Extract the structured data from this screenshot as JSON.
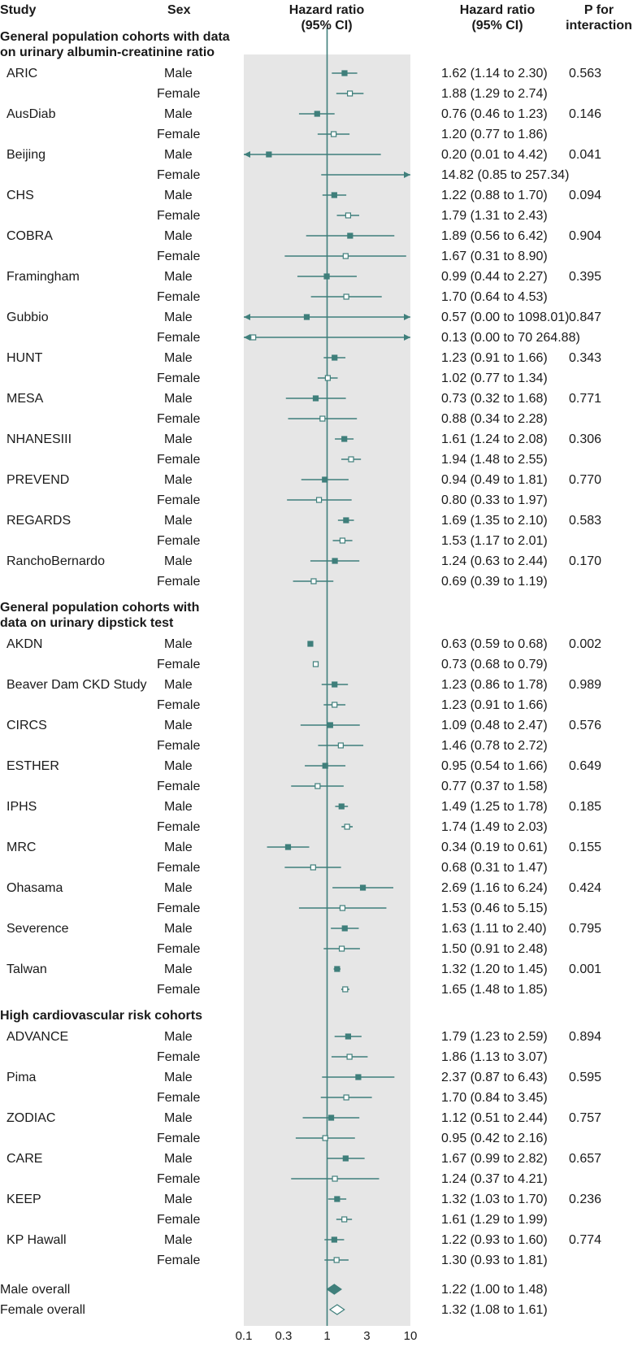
{
  "chart_data": {
    "type": "forest",
    "x_scale": "log",
    "xlim": [
      0.1,
      10
    ],
    "reference_line": 1,
    "headers": {
      "study": "Study",
      "sex": "Sex",
      "plot": [
        "Hazard ratio",
        "(95% CI)"
      ],
      "ci": [
        "Hazard ratio",
        "(95% CI)"
      ],
      "p": [
        "P for",
        "interaction"
      ]
    },
    "x_ticks": [
      {
        "value": 0.1,
        "label": "0.1"
      },
      {
        "value": 0.3,
        "label": "0.3"
      },
      {
        "value": 1,
        "label": "1"
      },
      {
        "value": 3,
        "label": "3"
      },
      {
        "value": 10,
        "label": "10"
      }
    ],
    "sections": [
      {
        "title": [
          "General population cohorts with data",
          "on urinary albumin-creatinine ratio"
        ],
        "studies": [
          {
            "study": "ARIC",
            "p": "0.563",
            "rows": [
              {
                "sex": "Male",
                "hr": 1.62,
                "lo": 1.14,
                "hi": 2.3,
                "ci": "1.62 (1.14 to 2.30)"
              },
              {
                "sex": "Female",
                "hr": 1.88,
                "lo": 1.29,
                "hi": 2.74,
                "ci": "1.88 (1.29 to 2.74)"
              }
            ]
          },
          {
            "study": "AusDiab",
            "p": "0.146",
            "rows": [
              {
                "sex": "Male",
                "hr": 0.76,
                "lo": 0.46,
                "hi": 1.23,
                "ci": "0.76 (0.46 to 1.23)"
              },
              {
                "sex": "Female",
                "hr": 1.2,
                "lo": 0.77,
                "hi": 1.86,
                "ci": "1.20 (0.77 to 1.86)"
              }
            ]
          },
          {
            "study": "Beijing",
            "p": "0.041",
            "rows": [
              {
                "sex": "Male",
                "hr": 0.2,
                "lo": 0.01,
                "hi": 4.42,
                "ci": "0.20 (0.01 to 4.42)"
              },
              {
                "sex": "Female",
                "hr": 14.82,
                "lo": 0.85,
                "hi": 257.34,
                "ci": "14.82 (0.85 to 257.34)"
              }
            ]
          },
          {
            "study": "CHS",
            "p": "0.094",
            "rows": [
              {
                "sex": "Male",
                "hr": 1.22,
                "lo": 0.88,
                "hi": 1.7,
                "ci": "1.22 (0.88 to 1.70)"
              },
              {
                "sex": "Female",
                "hr": 1.79,
                "lo": 1.31,
                "hi": 2.43,
                "ci": "1.79 (1.31 to 2.43)"
              }
            ]
          },
          {
            "study": "COBRA",
            "p": "0.904",
            "rows": [
              {
                "sex": "Male",
                "hr": 1.89,
                "lo": 0.56,
                "hi": 6.42,
                "ci": "1.89 (0.56 to 6.42)"
              },
              {
                "sex": "Female",
                "hr": 1.67,
                "lo": 0.31,
                "hi": 8.9,
                "ci": "1.67 (0.31 to 8.90)"
              }
            ]
          },
          {
            "study": "Framingham",
            "p": "0.395",
            "rows": [
              {
                "sex": "Male",
                "hr": 0.99,
                "lo": 0.44,
                "hi": 2.27,
                "ci": "0.99 (0.44 to 2.27)"
              },
              {
                "sex": "Female",
                "hr": 1.7,
                "lo": 0.64,
                "hi": 4.53,
                "ci": "1.70 (0.64 to 4.53)"
              }
            ]
          },
          {
            "study": "Gubbio",
            "p": "0.847",
            "rows": [
              {
                "sex": "Male",
                "hr": 0.57,
                "lo": 0.0,
                "hi": 1098.01,
                "ci": "0.57 (0.00 to 1098.01)"
              },
              {
                "sex": "Female",
                "hr": 0.13,
                "lo": 0.0,
                "hi": 70264.88,
                "ci": "0.13 (0.00 to 70 264.88)"
              }
            ]
          },
          {
            "study": "HUNT",
            "p": "0.343",
            "rows": [
              {
                "sex": "Male",
                "hr": 1.23,
                "lo": 0.91,
                "hi": 1.66,
                "ci": "1.23 (0.91 to 1.66)"
              },
              {
                "sex": "Female",
                "hr": 1.02,
                "lo": 0.77,
                "hi": 1.34,
                "ci": "1.02 (0.77 to 1.34)"
              }
            ]
          },
          {
            "study": "MESA",
            "p": "0.771",
            "rows": [
              {
                "sex": "Male",
                "hr": 0.73,
                "lo": 0.32,
                "hi": 1.68,
                "ci": "0.73 (0.32 to 1.68)"
              },
              {
                "sex": "Female",
                "hr": 0.88,
                "lo": 0.34,
                "hi": 2.28,
                "ci": "0.88 (0.34 to 2.28)"
              }
            ]
          },
          {
            "study": "NHANESIII",
            "p": "0.306",
            "rows": [
              {
                "sex": "Male",
                "hr": 1.61,
                "lo": 1.24,
                "hi": 2.08,
                "ci": "1.61 (1.24 to 2.08)"
              },
              {
                "sex": "Female",
                "hr": 1.94,
                "lo": 1.48,
                "hi": 2.55,
                "ci": "1.94 (1.48 to 2.55)"
              }
            ]
          },
          {
            "study": "PREVEND",
            "p": "0.770",
            "rows": [
              {
                "sex": "Male",
                "hr": 0.94,
                "lo": 0.49,
                "hi": 1.81,
                "ci": "0.94 (0.49 to 1.81)"
              },
              {
                "sex": "Female",
                "hr": 0.8,
                "lo": 0.33,
                "hi": 1.97,
                "ci": "0.80 (0.33 to 1.97)"
              }
            ]
          },
          {
            "study": "REGARDS",
            "p": "0.583",
            "rows": [
              {
                "sex": "Male",
                "hr": 1.69,
                "lo": 1.35,
                "hi": 2.1,
                "ci": "1.69 (1.35 to 2.10)"
              },
              {
                "sex": "Female",
                "hr": 1.53,
                "lo": 1.17,
                "hi": 2.01,
                "ci": "1.53 (1.17 to 2.01)"
              }
            ]
          },
          {
            "study": "RanchoBernardo",
            "p": "0.170",
            "rows": [
              {
                "sex": "Male",
                "hr": 1.24,
                "lo": 0.63,
                "hi": 2.44,
                "ci": "1.24 (0.63 to 2.44)"
              },
              {
                "sex": "Female",
                "hr": 0.69,
                "lo": 0.39,
                "hi": 1.19,
                "ci": "0.69 (0.39 to 1.19)"
              }
            ]
          }
        ]
      },
      {
        "title": [
          "General population cohorts with",
          "data on urinary dipstick test"
        ],
        "studies": [
          {
            "study": "AKDN",
            "p": "0.002",
            "rows": [
              {
                "sex": "Male",
                "hr": 0.63,
                "lo": 0.59,
                "hi": 0.68,
                "ci": "0.63 (0.59 to 0.68)"
              },
              {
                "sex": "Female",
                "hr": 0.73,
                "lo": 0.68,
                "hi": 0.79,
                "ci": "0.73 (0.68 to 0.79)"
              }
            ]
          },
          {
            "study": "Beaver Dam CKD Study",
            "p": "0.989",
            "rows": [
              {
                "sex": "Male",
                "hr": 1.23,
                "lo": 0.86,
                "hi": 1.78,
                "ci": "1.23 (0.86 to 1.78)"
              },
              {
                "sex": "Female",
                "hr": 1.23,
                "lo": 0.91,
                "hi": 1.66,
                "ci": "1.23 (0.91 to 1.66)"
              }
            ]
          },
          {
            "study": "CIRCS",
            "p": "0.576",
            "rows": [
              {
                "sex": "Male",
                "hr": 1.09,
                "lo": 0.48,
                "hi": 2.47,
                "ci": "1.09 (0.48 to 2.47)"
              },
              {
                "sex": "Female",
                "hr": 1.46,
                "lo": 0.78,
                "hi": 2.72,
                "ci": "1.46 (0.78 to 2.72)"
              }
            ]
          },
          {
            "study": "ESTHER",
            "p": "0.649",
            "rows": [
              {
                "sex": "Male",
                "hr": 0.95,
                "lo": 0.54,
                "hi": 1.66,
                "ci": "0.95 (0.54 to 1.66)"
              },
              {
                "sex": "Female",
                "hr": 0.77,
                "lo": 0.37,
                "hi": 1.58,
                "ci": "0.77 (0.37 to 1.58)"
              }
            ]
          },
          {
            "study": "IPHS",
            "p": "0.185",
            "rows": [
              {
                "sex": "Male",
                "hr": 1.49,
                "lo": 1.25,
                "hi": 1.78,
                "ci": "1.49 (1.25 to 1.78)"
              },
              {
                "sex": "Female",
                "hr": 1.74,
                "lo": 1.49,
                "hi": 2.03,
                "ci": "1.74 (1.49 to 2.03)"
              }
            ]
          },
          {
            "study": "MRC",
            "p": "0.155",
            "rows": [
              {
                "sex": "Male",
                "hr": 0.34,
                "lo": 0.19,
                "hi": 0.61,
                "ci": "0.34 (0.19 to 0.61)"
              },
              {
                "sex": "Female",
                "hr": 0.68,
                "lo": 0.31,
                "hi": 1.47,
                "ci": "0.68 (0.31 to 1.47)"
              }
            ]
          },
          {
            "study": "Ohasama",
            "p": "0.424",
            "rows": [
              {
                "sex": "Male",
                "hr": 2.69,
                "lo": 1.16,
                "hi": 6.24,
                "ci": "2.69 (1.16 to 6.24)"
              },
              {
                "sex": "Female",
                "hr": 1.53,
                "lo": 0.46,
                "hi": 5.15,
                "ci": "1.53 (0.46 to 5.15)"
              }
            ]
          },
          {
            "study": "Severence",
            "p": "0.795",
            "rows": [
              {
                "sex": "Male",
                "hr": 1.63,
                "lo": 1.11,
                "hi": 2.4,
                "ci": "1.63 (1.11 to 2.40)"
              },
              {
                "sex": "Female",
                "hr": 1.5,
                "lo": 0.91,
                "hi": 2.48,
                "ci": "1.50 (0.91 to 2.48)"
              }
            ]
          },
          {
            "study": "Talwan",
            "p": "0.001",
            "rows": [
              {
                "sex": "Male",
                "hr": 1.32,
                "lo": 1.2,
                "hi": 1.45,
                "ci": "1.32 (1.20 to 1.45)"
              },
              {
                "sex": "Female",
                "hr": 1.65,
                "lo": 1.48,
                "hi": 1.85,
                "ci": "1.65 (1.48 to 1.85)"
              }
            ]
          }
        ]
      },
      {
        "title": [
          "High cardiovascular risk cohorts"
        ],
        "studies": [
          {
            "study": "ADVANCE",
            "p": "0.894",
            "rows": [
              {
                "sex": "Male",
                "hr": 1.79,
                "lo": 1.23,
                "hi": 2.59,
                "ci": "1.79 (1.23 to 2.59)"
              },
              {
                "sex": "Female",
                "hr": 1.86,
                "lo": 1.13,
                "hi": 3.07,
                "ci": "1.86 (1.13 to 3.07)"
              }
            ]
          },
          {
            "study": "Pima",
            "p": "0.595",
            "rows": [
              {
                "sex": "Male",
                "hr": 2.37,
                "lo": 0.87,
                "hi": 6.43,
                "ci": "2.37 (0.87 to 6.43)"
              },
              {
                "sex": "Female",
                "hr": 1.7,
                "lo": 0.84,
                "hi": 3.45,
                "ci": "1.70 (0.84 to 3.45)"
              }
            ]
          },
          {
            "study": "ZODIAC",
            "p": "0.757",
            "rows": [
              {
                "sex": "Male",
                "hr": 1.12,
                "lo": 0.51,
                "hi": 2.44,
                "ci": "1.12 (0.51 to 2.44)"
              },
              {
                "sex": "Female",
                "hr": 0.95,
                "lo": 0.42,
                "hi": 2.16,
                "ci": "0.95 (0.42 to 2.16)"
              }
            ]
          },
          {
            "study": "CARE",
            "p": "0.657",
            "rows": [
              {
                "sex": "Male",
                "hr": 1.67,
                "lo": 0.99,
                "hi": 2.82,
                "ci": "1.67 (0.99 to 2.82)"
              },
              {
                "sex": "Female",
                "hr": 1.24,
                "lo": 0.37,
                "hi": 4.21,
                "ci": "1.24 (0.37 to 4.21)"
              }
            ]
          },
          {
            "study": "KEEP",
            "p": "0.236",
            "rows": [
              {
                "sex": "Male",
                "hr": 1.32,
                "lo": 1.03,
                "hi": 1.7,
                "ci": "1.32 (1.03 to 1.70)"
              },
              {
                "sex": "Female",
                "hr": 1.61,
                "lo": 1.29,
                "hi": 1.99,
                "ci": "1.61 (1.29 to 1.99)"
              }
            ]
          },
          {
            "study": "KP Hawall",
            "p": "0.774",
            "rows": [
              {
                "sex": "Male",
                "hr": 1.22,
                "lo": 0.93,
                "hi": 1.6,
                "ci": "1.22 (0.93 to 1.60)"
              },
              {
                "sex": "Female",
                "hr": 1.3,
                "lo": 0.93,
                "hi": 1.81,
                "ci": "1.30 (0.93 to 1.81)"
              }
            ]
          }
        ]
      }
    ],
    "overall": [
      {
        "label": "Male overall",
        "sex": "Male",
        "hr": 1.22,
        "lo": 1.0,
        "hi": 1.48,
        "ci": "1.22 (1.00 to 1.48)"
      },
      {
        "label": "Female overall",
        "sex": "Female",
        "hr": 1.32,
        "lo": 1.08,
        "hi": 1.61,
        "ci": "1.32 (1.08 to 1.61)"
      }
    ],
    "colors": {
      "marker": "#3f7f7b",
      "panel": "#e6e6e6",
      "text": "#1a1a1a"
    }
  }
}
